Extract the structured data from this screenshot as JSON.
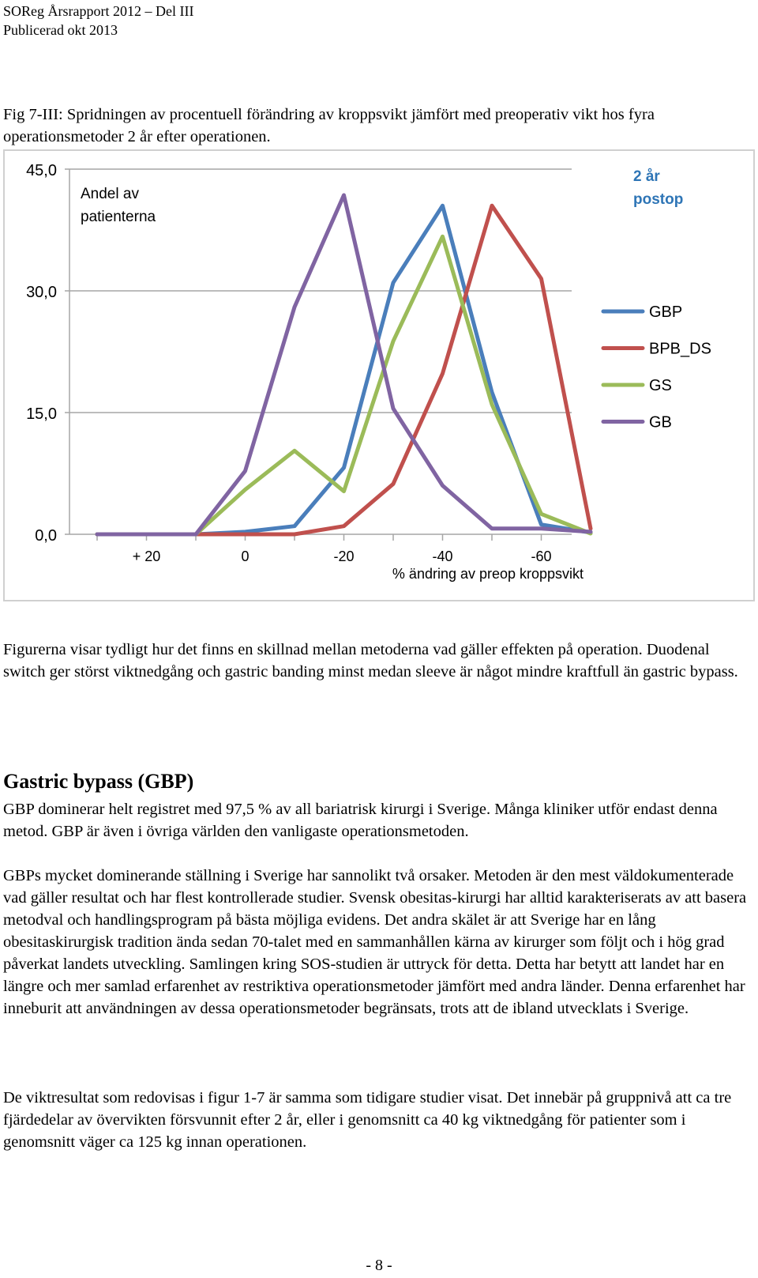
{
  "header": {
    "line1": "SOReg Årsrapport 2012 – Del III",
    "line2": "Publicerad okt 2013"
  },
  "figure": {
    "caption": "Fig 7-III: Spridningen av procentuell förändring av kroppsvikt jämfört med preoperativ vikt hos fyra operationsmetoder 2 år efter operationen."
  },
  "chart_data": {
    "type": "line",
    "title": "2 år postop",
    "title_lines": [
      "2 år",
      "postop"
    ],
    "ylabel": "Andel av patienterna",
    "ylabel_lines": [
      "Andel av",
      "patienterna"
    ],
    "xlabel": "% ändring av preop kroppsvikt",
    "y_ticks": [
      "45,0",
      "30,0",
      "15,0",
      "0,0"
    ],
    "y_tick_values": [
      45,
      30,
      15,
      0
    ],
    "ylim": [
      0,
      45
    ],
    "x_tick_labels": [
      "+ 20",
      "0",
      "-20",
      "-40",
      "-60"
    ],
    "x_tick_values": [
      20,
      0,
      -20,
      -40,
      -60
    ],
    "x": [
      30,
      20,
      10,
      0,
      -10,
      -20,
      -30,
      -40,
      -50,
      -60,
      -70
    ],
    "grid": true,
    "legend_position": "right",
    "series": [
      {
        "name": "GBP",
        "color": "#4a7ebb",
        "values": [
          0,
          0,
          0,
          0.3,
          1.0,
          8.2,
          31.0,
          40.5,
          17.5,
          1.2,
          0.2
        ]
      },
      {
        "name": "BPB_DS",
        "color": "#c0504d",
        "values": [
          0,
          0,
          0,
          0,
          0,
          1.0,
          6.2,
          19.8,
          40.5,
          31.5,
          0.7
        ]
      },
      {
        "name": "GS",
        "color": "#9bbb59",
        "values": [
          0,
          0,
          0,
          5.5,
          10.3,
          5.3,
          23.8,
          36.7,
          16.0,
          2.5,
          0.1
        ]
      },
      {
        "name": "GB",
        "color": "#8064a2",
        "values": [
          0,
          0,
          0,
          7.8,
          28.0,
          41.8,
          15.5,
          6.0,
          0.7,
          0.7,
          0.3
        ]
      }
    ]
  },
  "body": {
    "intro": "Figurerna visar tydligt hur det finns en skillnad mellan metoderna vad gäller effekten på operation. Duodenal switch ger störst viktnedgång och gastric banding minst medan sleeve är något mindre kraftfull än gastric bypass.",
    "heading": "Gastric bypass (GBP)",
    "para1": "GBP dominerar helt registret med 97,5 % av all bariatrisk kirurgi i Sverige. Många kliniker utför endast denna metod. GBP är även i övriga världen den vanligaste operationsmetoden.",
    "para2": "GBPs mycket dominerande ställning i Sverige har sannolikt två orsaker. Metoden är den mest väldokumenterade vad gäller resultat och har flest kontrollerade studier. Svensk obesitas-kirurgi har alltid karakteriserats av att basera metodval och handlingsprogram på bästa möjliga evidens. Det andra skälet är att Sverige har en lång obesitaskirurgisk tradition ända sedan 70-talet med en sammanhållen kärna av kirurger som följt och i hög grad påverkat landets utveckling. Samlingen kring SOS-studien är uttryck för detta. Detta har betytt att landet har en längre och mer samlad erfarenhet av restriktiva operationsmetoder jämfört med andra länder. Denna erfarenhet har inneburit att användningen av dessa operationsmetoder begränsats, trots att de ibland utvecklats i Sverige.",
    "para3": "De viktresultat som redovisas i figur 1-7 är samma som tidigare studier visat. Det innebär på gruppnivå att ca tre fjärdedelar av övervikten försvunnit efter 2 år, eller i genomsnitt ca 40 kg viktnedgång för patienter som i genomsnitt väger ca 125 kg innan operationen."
  },
  "footer": {
    "page_number": "- 8 -"
  }
}
